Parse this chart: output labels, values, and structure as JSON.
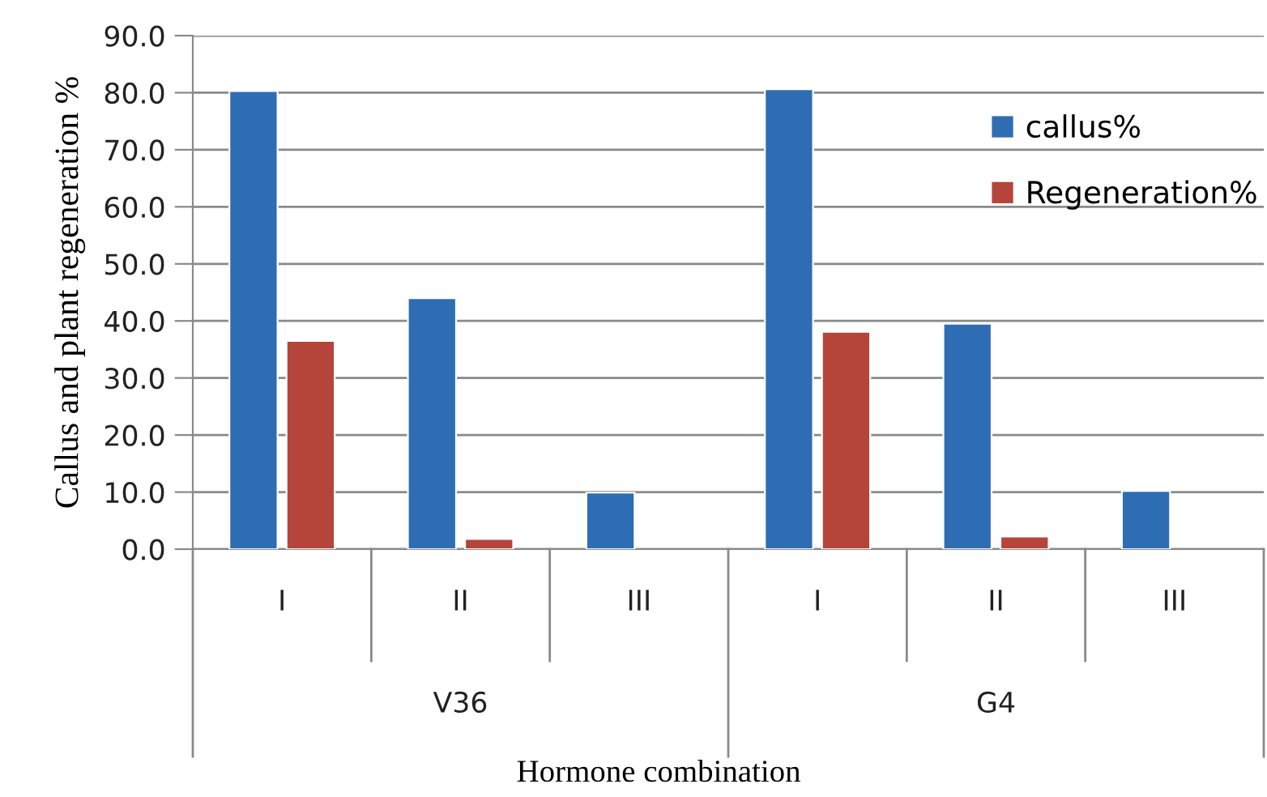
{
  "chart_data": {
    "type": "bar",
    "ylabel": "Callus and plant regeneration %",
    "xlabel": "Hormone combination",
    "categories": [
      "I",
      "II",
      "III",
      "I",
      "II",
      "III"
    ],
    "annotations": [
      "V36",
      "G4"
    ],
    "series": [
      {
        "name": "callus%",
        "color": "#2e6db4",
        "values": [
          80.3,
          44.0,
          9.9,
          80.6,
          39.5,
          10.2
        ]
      },
      {
        "name": "Regeneration%",
        "color": "#b5443a",
        "values": [
          36.5,
          1.8,
          null,
          38.1,
          2.2,
          null
        ]
      }
    ],
    "ylim": [
      0,
      90
    ],
    "yticks": [
      {
        "value": 0,
        "label": "0.0"
      },
      {
        "value": 10,
        "label": "10.0"
      },
      {
        "value": 20,
        "label": "20.0"
      },
      {
        "value": 30,
        "label": "30.0"
      },
      {
        "value": 40,
        "label": "40.0"
      },
      {
        "value": 50,
        "label": "50.0"
      },
      {
        "value": 60,
        "label": "60.0"
      },
      {
        "value": 70,
        "label": "70.0"
      },
      {
        "value": 80,
        "label": "80.0"
      },
      {
        "value": 90,
        "label": "90.0"
      }
    ],
    "grid": "y",
    "legend": "top right"
  }
}
